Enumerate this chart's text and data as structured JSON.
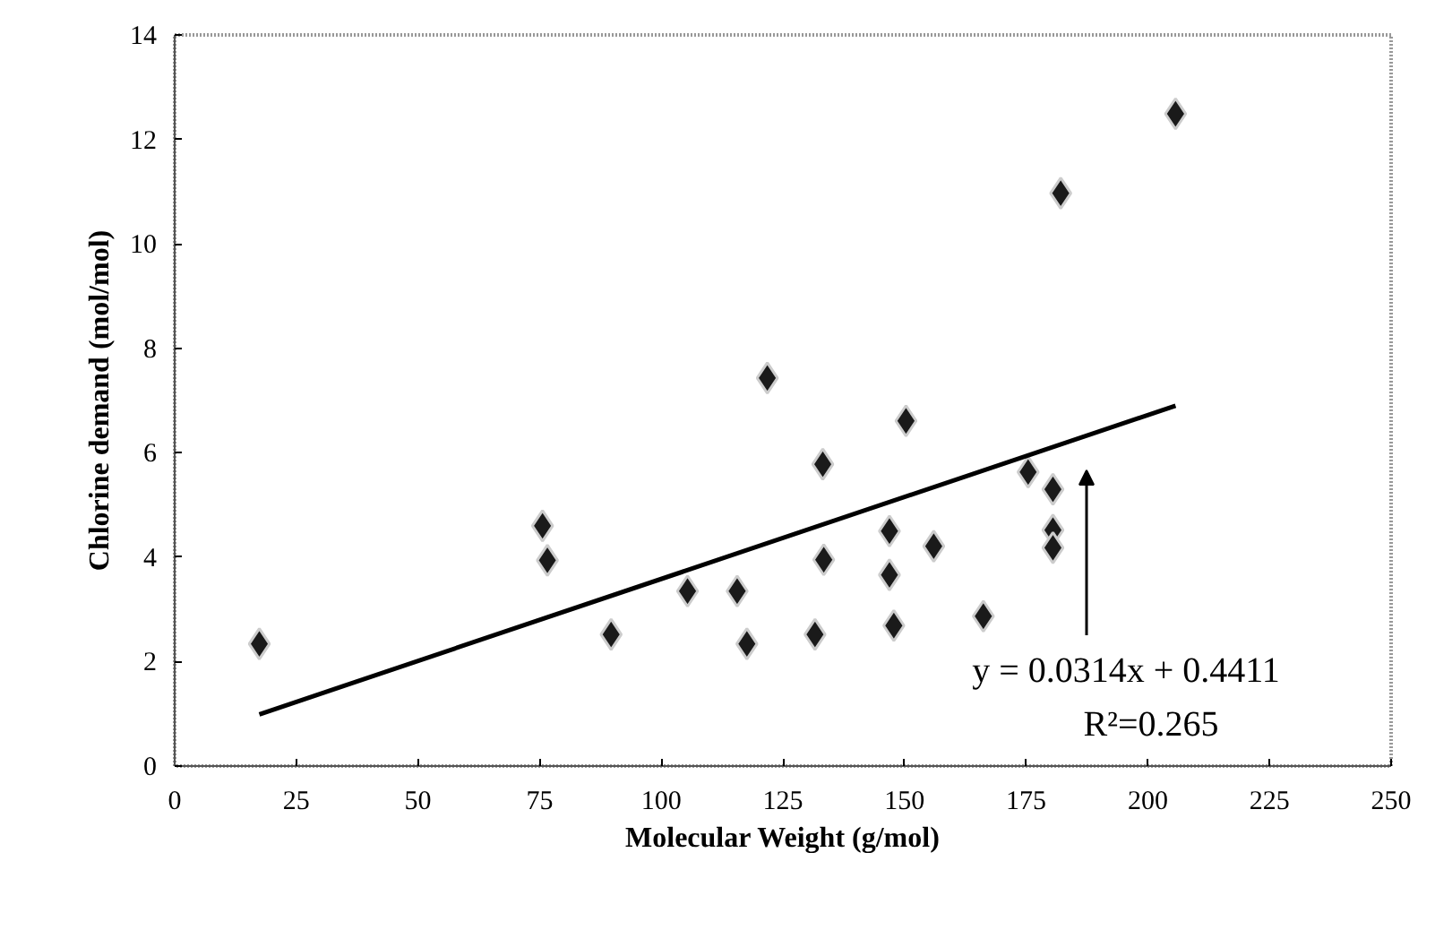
{
  "chart_data": {
    "type": "scatter",
    "xlabel": "Molecular Weight (g/mol)",
    "ylabel": "Chlorine demand (mol/mol)",
    "xlim": [
      0,
      250
    ],
    "xticks": [
      0,
      25,
      50,
      75,
      100,
      125,
      150,
      175,
      200,
      225,
      250
    ],
    "ylim": [
      0,
      14
    ],
    "yticks": [
      0,
      2,
      4,
      6,
      8,
      10,
      12,
      14
    ],
    "grid": false,
    "marker": "diamond",
    "series": [
      {
        "color": "#1a1a1a",
        "x": [
          17.4,
          75.6,
          76.6,
          89.7,
          105.4,
          115.6,
          117.6,
          121.8,
          131.6,
          133.2,
          133.4,
          146.9,
          146.9,
          147.8,
          150.3,
          156.0,
          166.2,
          175.4,
          180.5,
          180.5,
          180.5,
          182.1,
          205.7
        ],
        "values": [
          2.34,
          4.6,
          3.94,
          2.52,
          3.35,
          3.35,
          2.34,
          7.43,
          2.52,
          5.78,
          3.95,
          4.5,
          3.66,
          2.69,
          6.61,
          4.21,
          2.87,
          5.63,
          5.3,
          4.52,
          4.18,
          10.97,
          12.49
        ]
      },
      {
        "type": "line",
        "color": "#000000",
        "marker": "none",
        "x": [
          17.4,
          205.7
        ],
        "values": [
          0.99,
          6.9
        ]
      }
    ],
    "annotations": [
      "y = 0.0314x + 0.4411",
      "R²=0.265"
    ]
  }
}
